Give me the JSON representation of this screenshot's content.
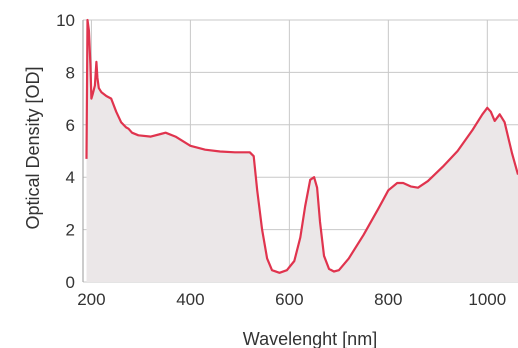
{
  "chart_data": {
    "type": "area",
    "title": "",
    "xlabel": "Wavelenght [nm]",
    "ylabel": "Optical Density [OD]",
    "xlim": [
      183,
      1062
    ],
    "ylim": [
      0,
      10
    ],
    "x_ticks": [
      200,
      400,
      600,
      800,
      1000
    ],
    "y_ticks": [
      0,
      2,
      4,
      6,
      8,
      10
    ],
    "grid": true,
    "legend": "none",
    "colors": {
      "line": "#e0344e",
      "fill": "#ebe7e8",
      "grid": "#c8c8c8"
    },
    "series": [
      {
        "values": [
          [
            190,
            0
          ],
          [
            190,
            4.7
          ],
          [
            192,
            10.0
          ],
          [
            195,
            9.6
          ],
          [
            198,
            8.3
          ],
          [
            200,
            7.0
          ],
          [
            203,
            7.2
          ],
          [
            207,
            7.5
          ],
          [
            210,
            8.4
          ],
          [
            212,
            7.8
          ],
          [
            215,
            7.4
          ],
          [
            220,
            7.25
          ],
          [
            230,
            7.1
          ],
          [
            240,
            7.0
          ],
          [
            250,
            6.5
          ],
          [
            260,
            6.1
          ],
          [
            270,
            5.9
          ],
          [
            275,
            5.85
          ],
          [
            282,
            5.7
          ],
          [
            295,
            5.6
          ],
          [
            320,
            5.55
          ],
          [
            340,
            5.65
          ],
          [
            350,
            5.7
          ],
          [
            370,
            5.55
          ],
          [
            400,
            5.2
          ],
          [
            430,
            5.05
          ],
          [
            460,
            4.98
          ],
          [
            490,
            4.95
          ],
          [
            520,
            4.95
          ],
          [
            528,
            4.8
          ],
          [
            535,
            3.5
          ],
          [
            545,
            2.0
          ],
          [
            555,
            0.9
          ],
          [
            565,
            0.45
          ],
          [
            580,
            0.35
          ],
          [
            595,
            0.45
          ],
          [
            610,
            0.8
          ],
          [
            622,
            1.7
          ],
          [
            632,
            2.9
          ],
          [
            642,
            3.9
          ],
          [
            650,
            4.0
          ],
          [
            656,
            3.6
          ],
          [
            662,
            2.3
          ],
          [
            670,
            1.0
          ],
          [
            680,
            0.5
          ],
          [
            690,
            0.4
          ],
          [
            700,
            0.45
          ],
          [
            720,
            0.9
          ],
          [
            750,
            1.8
          ],
          [
            780,
            2.8
          ],
          [
            800,
            3.5
          ],
          [
            818,
            3.78
          ],
          [
            830,
            3.78
          ],
          [
            845,
            3.65
          ],
          [
            860,
            3.6
          ],
          [
            880,
            3.85
          ],
          [
            910,
            4.4
          ],
          [
            940,
            5.0
          ],
          [
            970,
            5.8
          ],
          [
            990,
            6.4
          ],
          [
            1000,
            6.65
          ],
          [
            1007,
            6.5
          ],
          [
            1015,
            6.15
          ],
          [
            1025,
            6.4
          ],
          [
            1035,
            6.1
          ],
          [
            1050,
            4.9
          ],
          [
            1062,
            4.1
          ],
          [
            1062,
            0
          ]
        ]
      }
    ]
  }
}
